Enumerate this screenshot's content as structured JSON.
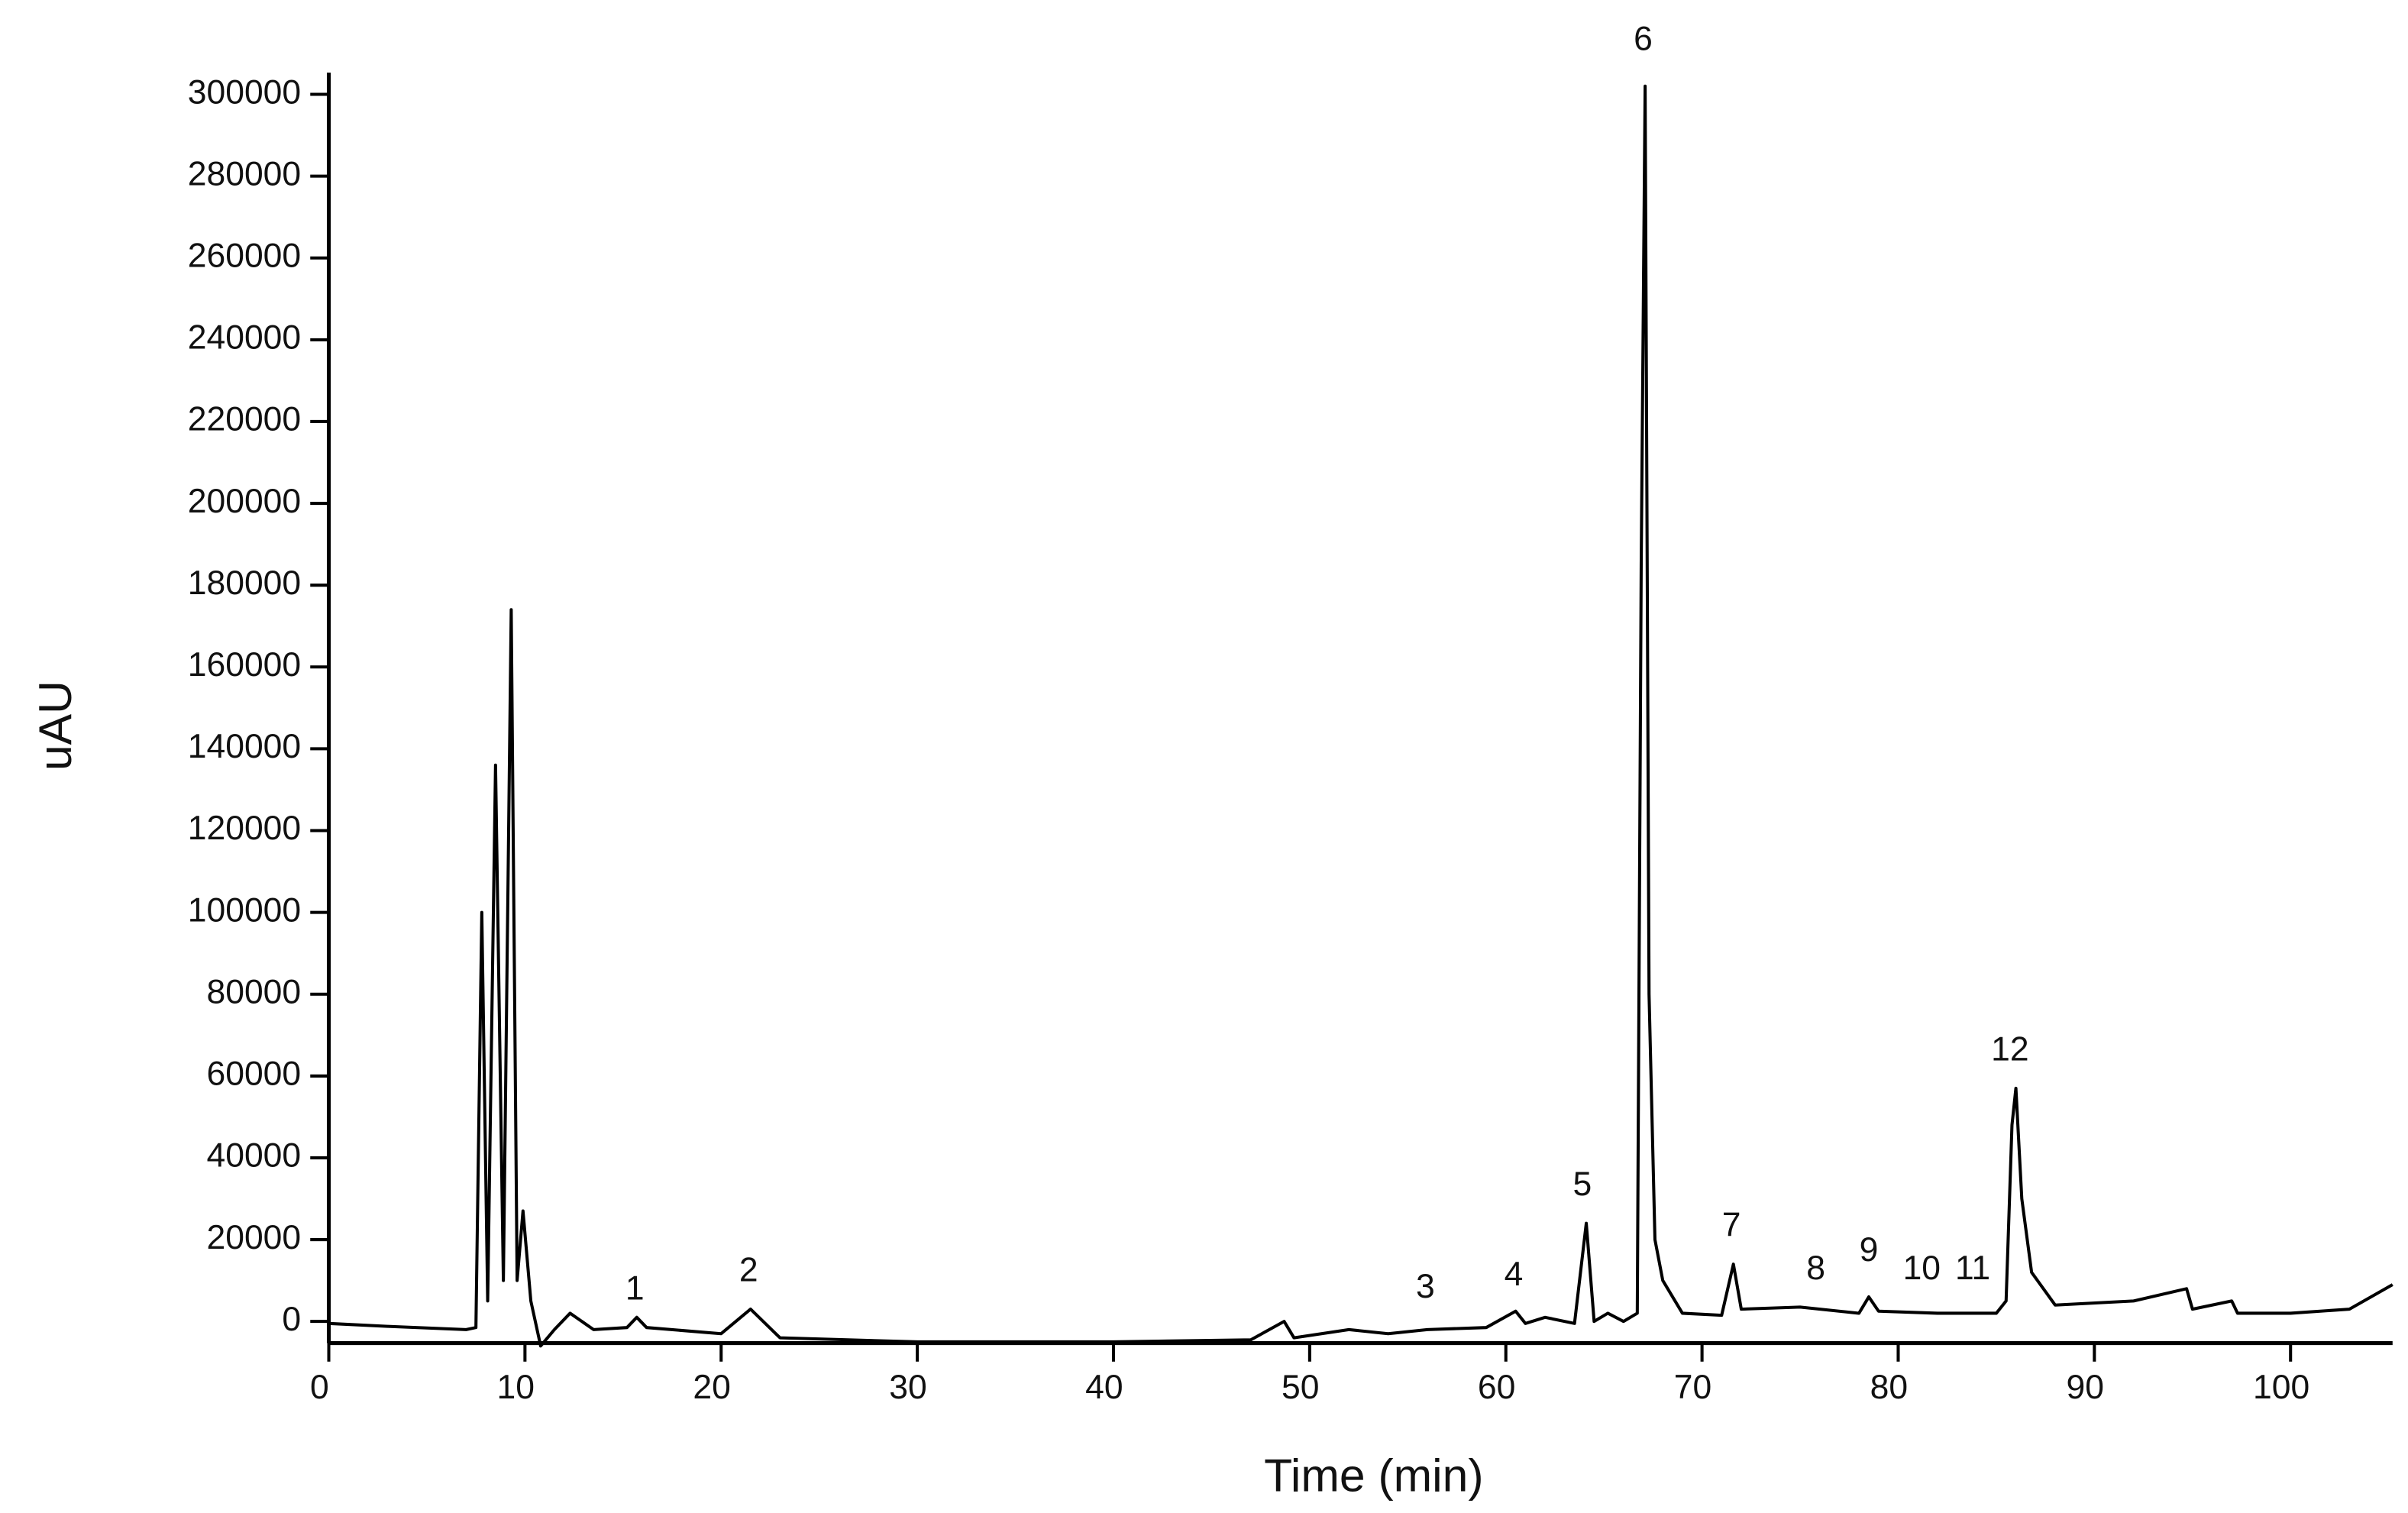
{
  "chart_data": {
    "type": "line",
    "xlabel": "Time (min)",
    "ylabel": "uAU",
    "color": "#000000",
    "x": [
      0,
      3,
      7,
      7.5,
      7.8,
      8.1,
      8.5,
      8.9,
      9.3,
      9.6,
      9.9,
      10.3,
      10.8,
      11.5,
      12.3,
      13.5,
      15.2,
      15.7,
      16.2,
      20,
      21.5,
      23,
      30,
      40,
      47,
      48.7,
      49.2,
      52,
      54,
      56,
      59,
      60.5,
      61,
      62,
      63.5,
      64.1,
      64.5,
      65.2,
      66,
      66.7,
      66.9,
      67.1,
      67.3,
      67.6,
      68,
      69,
      71,
      71.6,
      72,
      75,
      78,
      78.5,
      79,
      82,
      85,
      85.5,
      85.8,
      86,
      86.3,
      86.8,
      88,
      92,
      94.7,
      95,
      97,
      97.3,
      100,
      103,
      105.2
    ],
    "values": [
      -500,
      -1200,
      -2000,
      -1500,
      100000,
      5000,
      136000,
      10000,
      174000,
      10000,
      27000,
      5000,
      -6000,
      -2000,
      2000,
      -2000,
      -1500,
      1000,
      -1500,
      -3000,
      3000,
      -4000,
      -5000,
      -5000,
      -4500,
      0,
      -4000,
      -2000,
      -3000,
      -2000,
      -1500,
      2500,
      -500,
      1000,
      -500,
      24000,
      0,
      2000,
      0,
      2000,
      185000,
      302000,
      80000,
      20000,
      10000,
      2000,
      1500,
      14000,
      3000,
      3500,
      2000,
      6000,
      2500,
      2000,
      2000,
      5000,
      48000,
      57000,
      30000,
      12000,
      4000,
      5000,
      8000,
      3000,
      5000,
      2000,
      2000,
      3000,
      9000
    ],
    "xlim": [
      0,
      105.2
    ],
    "ylim": [
      -5300,
      305300
    ],
    "xticks": [
      0,
      10,
      20,
      30,
      40,
      50,
      60,
      70,
      80,
      90,
      100
    ],
    "yticks": [
      0,
      20000,
      40000,
      60000,
      80000,
      100000,
      120000,
      140000,
      160000,
      180000,
      200000,
      220000,
      240000,
      260000,
      280000,
      300000
    ],
    "annotations": [
      {
        "text": "1",
        "x": 15.6,
        "y": 7500
      },
      {
        "text": "2",
        "x": 21.4,
        "y": 12000
      },
      {
        "text": "3",
        "x": 55.9,
        "y": 8000
      },
      {
        "text": "4",
        "x": 60.4,
        "y": 11000
      },
      {
        "text": "5",
        "x": 63.9,
        "y": 33000
      },
      {
        "text": "6",
        "x": 67.0,
        "y": 313000
      },
      {
        "text": "7",
        "x": 71.5,
        "y": 23000
      },
      {
        "text": "8",
        "x": 75.8,
        "y": 12500
      },
      {
        "text": "9",
        "x": 78.5,
        "y": 17000
      },
      {
        "text": "10",
        "x": 81.2,
        "y": 12500
      },
      {
        "text": "11",
        "x": 83.8,
        "y": 12500
      },
      {
        "text": "12",
        "x": 85.7,
        "y": 66000
      }
    ]
  }
}
